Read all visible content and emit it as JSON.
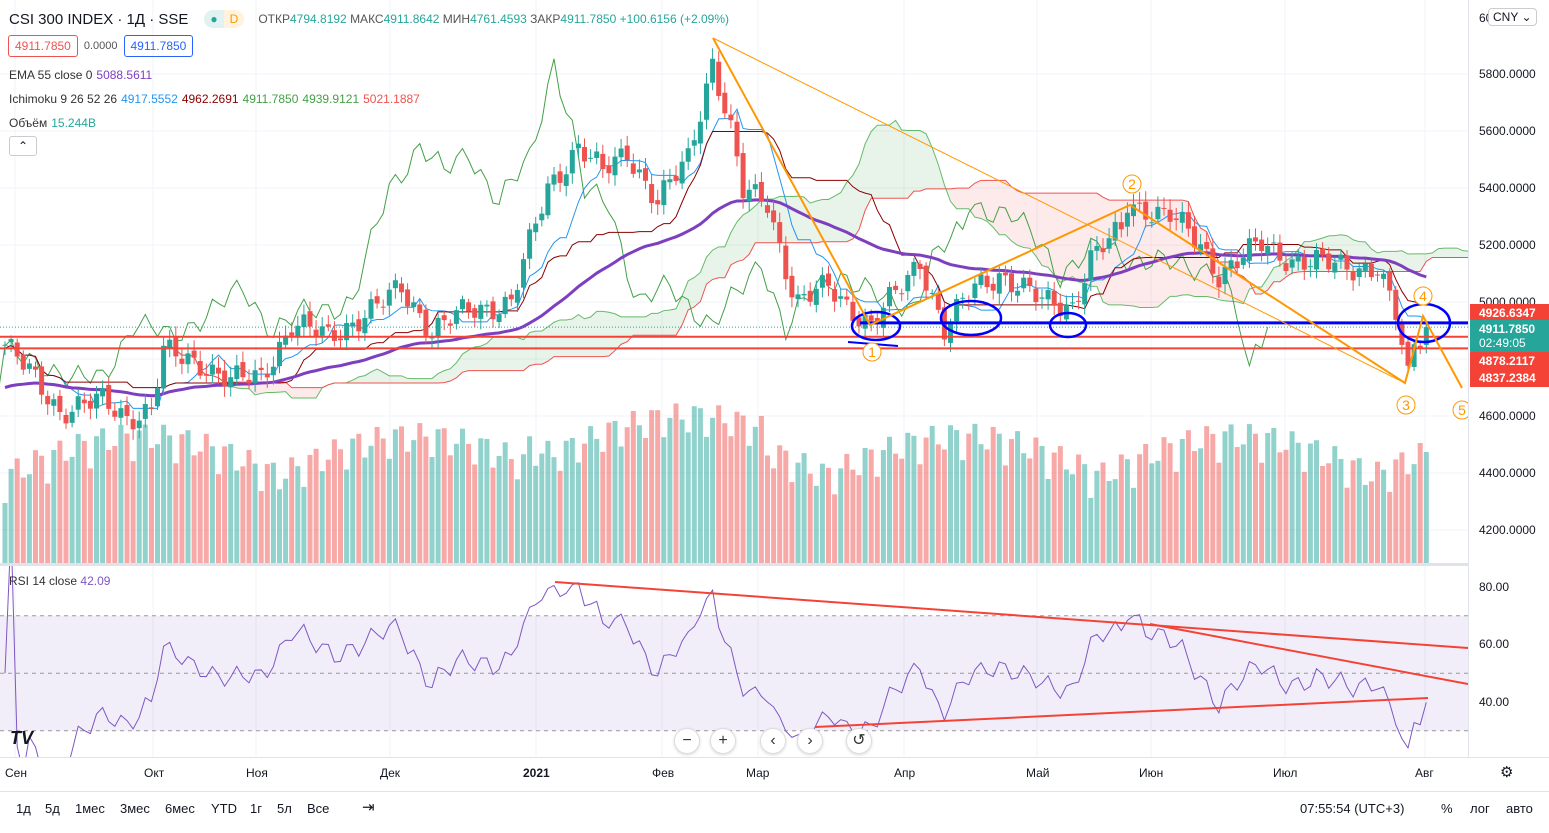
{
  "header": {
    "symbol": "CSI 300 INDEX · 1Д · SSE",
    "status_letter": "D",
    "open_label": "ОТКР",
    "open": "4794.8192",
    "high_label": "МАКС",
    "high": "4911.8642",
    "low_label": "МИН",
    "low": "4761.4593",
    "close_label": "ЗАКР",
    "close": "4911.7850",
    "change": "+100.6156 (+2.09%)"
  },
  "quote": {
    "sell": "4911.7850",
    "spread": "0.0000",
    "buy": "4911.7850"
  },
  "indicators": {
    "ema": {
      "label": "EMA 55 close 0",
      "value": "5088.5611"
    },
    "ichimoku": {
      "label": "Ichimoku 9 26 52 26",
      "v1": "4917.5552",
      "v2": "4962.2691",
      "v3": "4911.7850",
      "v4": "4939.9121",
      "v5": "5021.1887"
    },
    "volume": {
      "label": "Объём",
      "value": "15.244B"
    },
    "rsi": {
      "label": "RSI 14 close",
      "value": "42.09"
    }
  },
  "currency": "CNY",
  "price_axis": {
    "ticks": [
      "5800.0000",
      "5600.0000",
      "5400.0000",
      "5200.0000",
      "5000.0000",
      "4600.0000",
      "4400.0000",
      "4200.0000"
    ],
    "top_partial": "60"
  },
  "price_labels": {
    "l1": "4926.6347",
    "last": "4911.7850",
    "countdown": "02:49:05",
    "l3": "4878.2117",
    "l4": "4837.2384"
  },
  "rsi_axis": {
    "ticks": [
      "80.00",
      "60.00",
      "40.00"
    ]
  },
  "time_axis": [
    "Сен",
    "Окт",
    "Ноя",
    "Дек",
    "2021",
    "Фев",
    "Мар",
    "Апр",
    "Май",
    "Июн",
    "Июл",
    "Авг"
  ],
  "wave_labels": [
    "1",
    "2",
    "3",
    "4",
    "5"
  ],
  "zoom_controls": {
    "minus": "−",
    "plus": "+",
    "left": "‹",
    "right": "›",
    "reset": "↺"
  },
  "toolbar": {
    "ranges": [
      "1д",
      "5д",
      "1мес",
      "3мес",
      "6мес",
      "YTD",
      "1г",
      "5л",
      "Все"
    ],
    "clock": "07:55:54 (UTC+3)",
    "percent": "%",
    "log": "лог",
    "auto": "авто"
  },
  "colors": {
    "up": "#26a69a",
    "down": "#ef5350",
    "ema": "#7e3fbf",
    "tenkan": "#2196f3",
    "kijun": "#8b0000",
    "lagging": "#43a047",
    "rsi": "#7e57c2",
    "drawing_blue": "#0000ff",
    "wave": "#ff9800"
  },
  "chart_data": {
    "type": "candlestick",
    "price_range": [
      4150,
      6000
    ],
    "rsi_range": [
      20,
      90
    ],
    "close_keypoints": [
      [
        0,
        4850
      ],
      [
        6,
        4700
      ],
      [
        9,
        4620
      ],
      [
        16,
        4650
      ],
      [
        20,
        4600
      ],
      [
        24,
        4620
      ],
      [
        26,
        4820
      ],
      [
        32,
        4790
      ],
      [
        37,
        4720
      ],
      [
        42,
        4740
      ],
      [
        47,
        4920
      ],
      [
        53,
        4880
      ],
      [
        61,
        4980
      ],
      [
        65,
        5050
      ],
      [
        70,
        4900
      ],
      [
        76,
        4970
      ],
      [
        83,
        5000
      ],
      [
        86,
        5200
      ],
      [
        89,
        5400
      ],
      [
        94,
        5550
      ],
      [
        98,
        5450
      ],
      [
        102,
        5530
      ],
      [
        107,
        5350
      ],
      [
        112,
        5500
      ],
      [
        116,
        5850
      ],
      [
        119,
        5600
      ],
      [
        121,
        5380
      ],
      [
        125,
        5350
      ],
      [
        129,
        5050
      ],
      [
        130,
        5000
      ],
      [
        135,
        5050
      ],
      [
        142,
        4920
      ],
      [
        147,
        5050
      ],
      [
        150,
        5150
      ],
      [
        154,
        4900
      ],
      [
        159,
        5050
      ],
      [
        163,
        5100
      ],
      [
        170,
        5000
      ],
      [
        175,
        4990
      ],
      [
        178,
        5150
      ],
      [
        183,
        5250
      ],
      [
        184,
        5350
      ],
      [
        191,
        5300
      ],
      [
        196,
        5200
      ],
      [
        199,
        5100
      ],
      [
        206,
        5200
      ],
      [
        211,
        5150
      ],
      [
        217,
        5130
      ],
      [
        225,
        5120
      ],
      [
        228,
        4950
      ],
      [
        230,
        4730
      ],
      [
        231,
        4850
      ],
      [
        233,
        4912
      ]
    ],
    "horizontal_levels": [
      4926.6347,
      4878.2117,
      4837.2384
    ]
  }
}
